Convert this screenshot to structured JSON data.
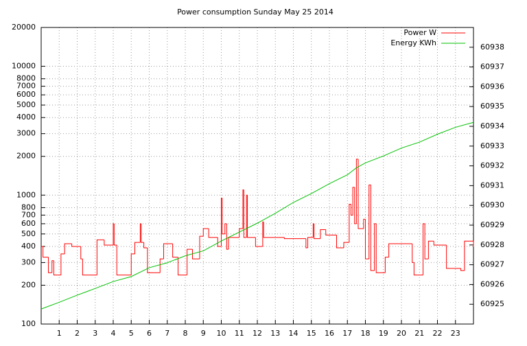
{
  "chart_data": {
    "type": "line",
    "title": "Power consumption Sunday May 25 2014",
    "xlim": [
      0,
      24
    ],
    "xticks": [
      1,
      2,
      3,
      4,
      5,
      6,
      7,
      8,
      9,
      10,
      11,
      12,
      13,
      14,
      15,
      16,
      17,
      18,
      19,
      20,
      21,
      22,
      23
    ],
    "ylim": [
      100,
      20000
    ],
    "log_y": true,
    "yticks": [
      100,
      200,
      300,
      400,
      500,
      600,
      700,
      800,
      1000,
      2000,
      3000,
      4000,
      5000,
      6000,
      7000,
      8000,
      10000,
      20000
    ],
    "y2lim": [
      60924,
      60939
    ],
    "y2ticks": [
      60925,
      60926,
      60927,
      60928,
      60929,
      60930,
      60931,
      60932,
      60933,
      60934,
      60935,
      60936,
      60937,
      60938
    ],
    "grid": true,
    "legend": "top-right",
    "series": [
      {
        "name": "Power W",
        "color": "#ff0000",
        "step": true,
        "x": [
          0,
          0.1,
          0.4,
          0.6,
          0.7,
          1.1,
          1.3,
          1.7,
          2.2,
          2.3,
          3.1,
          3.5,
          4,
          4.05,
          4.2,
          5,
          5.2,
          5.5,
          5.55,
          5.7,
          5.9,
          6.6,
          6.8,
          7.3,
          7.6,
          8.1,
          8.4,
          8.8,
          9,
          9.3,
          9.8,
          10,
          10.05,
          10.2,
          10.3,
          10.4,
          11,
          11.2,
          11.25,
          11.4,
          11.45,
          11.9,
          12.3,
          12.35,
          13.5,
          14.7,
          14.8,
          15.1,
          15.15,
          15.5,
          15.8,
          16.4,
          16.8,
          17.1,
          17.2,
          17.3,
          17.4,
          17.5,
          17.6,
          17.9,
          18,
          18.2,
          18.3,
          18.5,
          18.6,
          19.1,
          19.3,
          20.6,
          20.7,
          21.2,
          21.3,
          21.5,
          21.8,
          22.5,
          23.3,
          23.5,
          24
        ],
        "values": [
          400,
          330,
          250,
          310,
          240,
          350,
          420,
          400,
          320,
          240,
          450,
          410,
          600,
          410,
          240,
          350,
          430,
          600,
          430,
          390,
          250,
          320,
          420,
          330,
          240,
          380,
          320,
          480,
          550,
          470,
          400,
          950,
          500,
          600,
          380,
          470,
          550,
          1100,
          470,
          1000,
          470,
          400,
          620,
          470,
          460,
          390,
          470,
          600,
          460,
          540,
          490,
          390,
          430,
          850,
          700,
          1150,
          600,
          1900,
          550,
          650,
          320,
          1200,
          260,
          600,
          250,
          330,
          420,
          300,
          240,
          600,
          320,
          440,
          410,
          270,
          260,
          440,
          400
        ]
      },
      {
        "name": "Energy KWh",
        "color": "#00c000",
        "axis": "y2",
        "x": [
          0,
          1,
          2,
          3,
          4,
          5,
          6,
          7,
          8,
          9,
          10,
          11,
          12,
          13,
          14,
          15,
          16,
          17,
          17.5,
          18,
          19,
          20,
          21,
          22,
          23,
          24
        ],
        "values": [
          60924.76,
          60925.1,
          60925.46,
          60925.8,
          60926.15,
          60926.4,
          60926.85,
          60927.1,
          60927.45,
          60927.7,
          60928.2,
          60928.65,
          60929.1,
          60929.6,
          60930.15,
          60930.6,
          60931.1,
          60931.55,
          60931.9,
          60932.15,
          60932.5,
          60932.9,
          60933.2,
          60933.6,
          60933.95,
          60934.2
        ]
      }
    ]
  }
}
